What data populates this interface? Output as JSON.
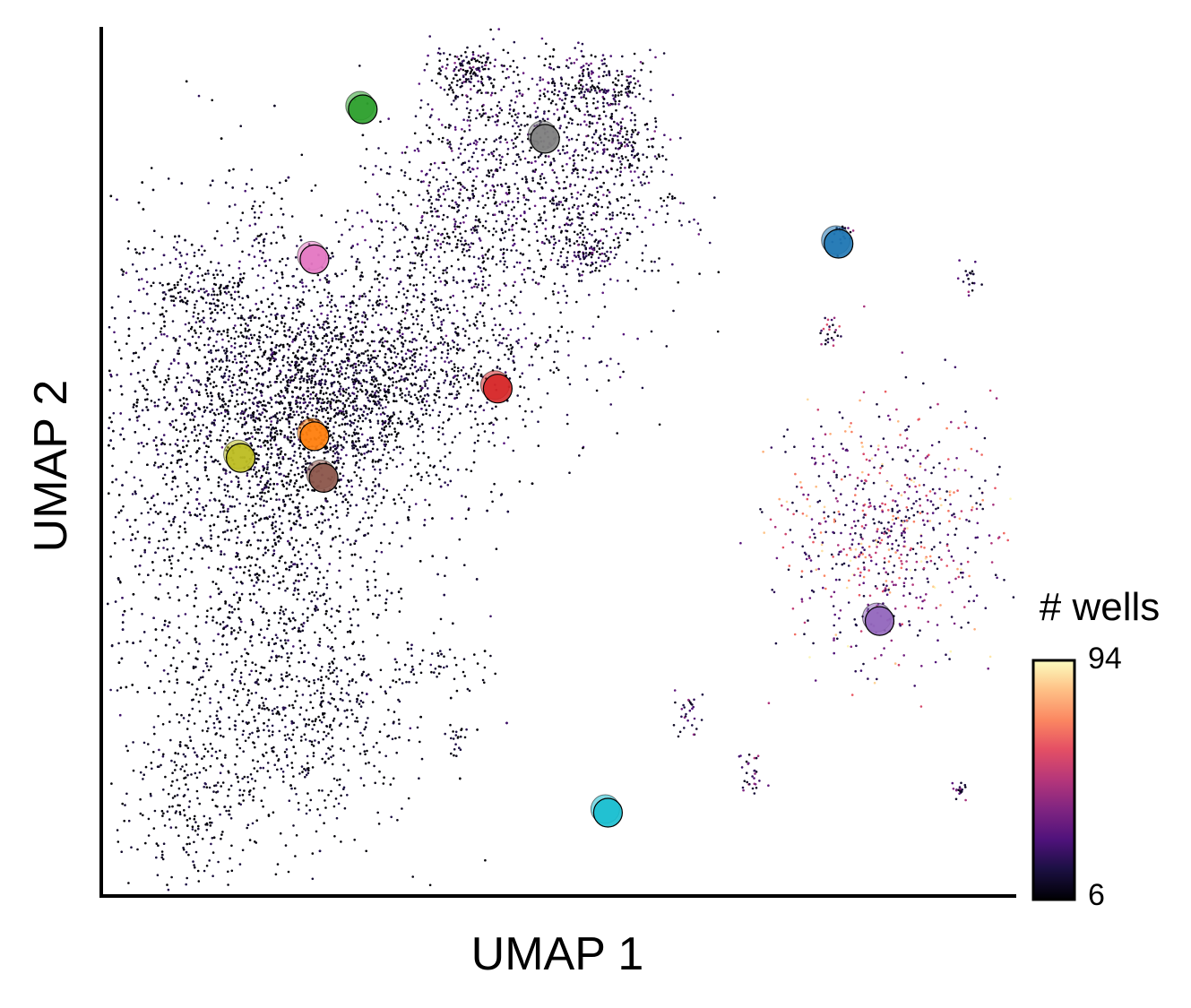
{
  "chart_data": {
    "type": "scatter",
    "title": "",
    "xlabel": "UMAP 1",
    "ylabel": "UMAP 2",
    "xlim": [
      0,
      100
    ],
    "ylim": [
      0,
      100
    ],
    "grid": false,
    "ticks": false,
    "background_points": {
      "description_color": "colored by # wells using magma colormap",
      "clusters": [
        {
          "x": 16,
          "y": 50,
          "sx": 10,
          "sy": 14,
          "n": 3800,
          "c_min": 6,
          "c_max": 25
        },
        {
          "x": 25,
          "y": 57,
          "sx": 8,
          "sy": 6,
          "n": 1100,
          "c_min": 6,
          "c_max": 25
        },
        {
          "x": 30,
          "y": 62,
          "sx": 12,
          "sy": 5,
          "n": 900,
          "c_min": 6,
          "c_max": 30
        },
        {
          "x": 22,
          "y": 22,
          "sx": 6,
          "sy": 8,
          "n": 650,
          "c_min": 6,
          "c_max": 20
        },
        {
          "x": 10,
          "y": 12,
          "sx": 4,
          "sy": 6,
          "n": 300,
          "c_min": 6,
          "c_max": 20
        },
        {
          "x": 38,
          "y": 76,
          "sx": 5,
          "sy": 6,
          "n": 500,
          "c_min": 6,
          "c_max": 35
        },
        {
          "x": 46,
          "y": 87,
          "sx": 5,
          "sy": 5,
          "n": 450,
          "c_min": 6,
          "c_max": 35
        },
        {
          "x": 52,
          "y": 78,
          "sx": 6,
          "sy": 4,
          "n": 350,
          "c_min": 6,
          "c_max": 35
        },
        {
          "x": 54,
          "y": 93,
          "sx": 3,
          "sy": 2,
          "n": 250,
          "c_min": 6,
          "c_max": 40
        },
        {
          "x": 40,
          "y": 95,
          "sx": 2,
          "sy": 1.5,
          "n": 150,
          "c_min": 6,
          "c_max": 40
        },
        {
          "x": 57,
          "y": 86,
          "sx": 2,
          "sy": 2,
          "n": 150,
          "c_min": 6,
          "c_max": 40
        },
        {
          "x": 53,
          "y": 74,
          "sx": 1.5,
          "sy": 1.5,
          "n": 80,
          "c_min": 6,
          "c_max": 40
        },
        {
          "x": 86,
          "y": 42,
          "sx": 6,
          "sy": 7,
          "n": 700,
          "c_min": 15,
          "c_max": 94
        },
        {
          "x": 10,
          "y": 70,
          "sx": 3,
          "sy": 2,
          "n": 120,
          "c_min": 6,
          "c_max": 30
        },
        {
          "x": 17,
          "y": 76,
          "sx": 1.5,
          "sy": 3,
          "n": 60,
          "c_min": 6,
          "c_max": 30
        },
        {
          "x": 64,
          "y": 21,
          "sx": 0.8,
          "sy": 1.5,
          "n": 30,
          "c_min": 10,
          "c_max": 60
        },
        {
          "x": 71,
          "y": 14,
          "sx": 0.8,
          "sy": 1.5,
          "n": 30,
          "c_min": 10,
          "c_max": 60
        },
        {
          "x": 94,
          "y": 12,
          "sx": 0.5,
          "sy": 0.6,
          "n": 20,
          "c_min": 10,
          "c_max": 50
        },
        {
          "x": 95,
          "y": 71,
          "sx": 0.5,
          "sy": 0.8,
          "n": 20,
          "c_min": 10,
          "c_max": 50
        },
        {
          "x": 80,
          "y": 65,
          "sx": 0.8,
          "sy": 1.2,
          "n": 25,
          "c_min": 10,
          "c_max": 60
        },
        {
          "x": 81,
          "y": 76,
          "sx": 0.5,
          "sy": 1,
          "n": 20,
          "c_min": 10,
          "c_max": 50
        },
        {
          "x": 37,
          "y": 26,
          "sx": 3,
          "sy": 1.2,
          "n": 40,
          "c_min": 6,
          "c_max": 20
        },
        {
          "x": 39,
          "y": 18,
          "sx": 0.5,
          "sy": 1,
          "n": 20,
          "c_min": 6,
          "c_max": 20
        }
      ]
    },
    "highlight_points": [
      {
        "x": 28.5,
        "y": 90.5,
        "color": "#2ca02c"
      },
      {
        "x": 48.5,
        "y": 87.1,
        "color": "#7f7f7f"
      },
      {
        "x": 80.7,
        "y": 75.0,
        "color": "#1f77b4"
      },
      {
        "x": 23.2,
        "y": 73.2,
        "color": "#e377c2"
      },
      {
        "x": 43.3,
        "y": 58.3,
        "color": "#d62728"
      },
      {
        "x": 23.2,
        "y": 52.8,
        "color": "#ff7f0e"
      },
      {
        "x": 15.1,
        "y": 50.3,
        "color": "#bcbd22"
      },
      {
        "x": 24.2,
        "y": 48.0,
        "color": "#8c564b"
      },
      {
        "x": 85.2,
        "y": 31.5,
        "color": "#9467bd"
      },
      {
        "x": 55.4,
        "y": 9.4,
        "color": "#17becf"
      }
    ],
    "colorbar": {
      "label": "# wells",
      "min": 6,
      "max": 94,
      "min_label": "6",
      "max_label": "94",
      "colormap": "magma"
    }
  }
}
